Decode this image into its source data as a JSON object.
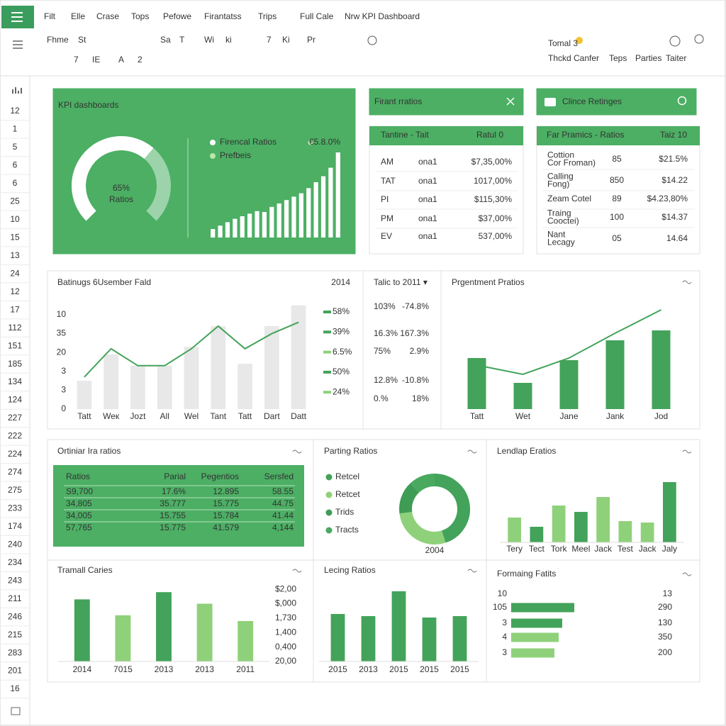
{
  "ui": {
    "menu": [
      "Filt",
      "Elle",
      "Crase",
      "Tops",
      "Pefowe",
      "Firantatss",
      "Trips",
      "Full Cale",
      "Nrw KPI Dashboard"
    ],
    "toolbar_row1": [
      "Fhme",
      "St",
      "Sa",
      "T",
      "Wi",
      "ki",
      "7",
      "Ki",
      "Pr"
    ],
    "toolbar_row2": [
      "7",
      "IE",
      "A",
      "2"
    ],
    "toolbar_right_top": "Tomal 3",
    "toolbar_right_bottom": [
      "Thckd Canfer",
      "Teps",
      "Parties",
      "Taiter"
    ],
    "row_numbers": [
      "12",
      "1",
      "5",
      "6",
      "6",
      "25",
      "10",
      "15",
      "13",
      "24",
      "12",
      "17",
      "112",
      "151",
      "185",
      "134",
      "124",
      "227",
      "222",
      "224",
      "274",
      "275",
      "233",
      "174",
      "240",
      "234",
      "243",
      "211",
      "246",
      "215",
      "283",
      "201",
      "16"
    ]
  },
  "tables": {
    "firant": {
      "title": "Firant rratios",
      "header": [
        "Tantine - Tait",
        "Ratul 0"
      ],
      "rows": [
        [
          "AM",
          "ona1",
          "$7,35,00%"
        ],
        [
          "TAT",
          "ona1",
          "1017,00%"
        ],
        [
          "PI",
          "ona1",
          "$115,30%"
        ],
        [
          "PM",
          "ona1",
          "$37,00%"
        ],
        [
          "EV",
          "ona1",
          "537,00%"
        ]
      ]
    },
    "clince": {
      "title": "Clince Retinges",
      "header": [
        "Far Pramics - Ratios",
        "Taiz 10"
      ],
      "rows": [
        {
          "label": [
            "Cottion",
            "Cor Froman)"
          ],
          "value": "85",
          "ratio": "$21.5%"
        },
        {
          "label": [
            "Calling",
            "Fong)"
          ],
          "value": "850",
          "ratio": "$14.22"
        },
        {
          "label": [
            "Zeam Cotel"
          ],
          "value": "89",
          "ratio": "$4.23,80%"
        },
        {
          "label": [
            "Traing",
            "Cooctei)"
          ],
          "value": "100",
          "ratio": "$14.37"
        },
        {
          "label": [
            "Nant",
            "Lecagy"
          ],
          "value": "05",
          "ratio": "14.64"
        }
      ]
    },
    "talic": {
      "title": "Talic to 2011 ▾",
      "rows": [
        [
          "103%",
          "-74.8%"
        ],
        [
          "16.3%",
          "167.3%"
        ],
        [
          "75%",
          "2.9%"
        ],
        [
          "12.8%",
          "-10.8%"
        ],
        [
          "0.%",
          "18%"
        ]
      ]
    },
    "ortiniar": {
      "title": "Ortiniar Ira ratios",
      "header": [
        "Ratios",
        "Parial",
        "Pegentios",
        "Sersfed"
      ],
      "rows": [
        [
          "S9,700",
          "17.6%",
          "12.895",
          "58.55"
        ],
        [
          "34,805",
          "35.777",
          "15.775",
          "44.75"
        ],
        [
          "34,005",
          "15.755",
          "15.784",
          "41.44"
        ],
        [
          "57,765",
          "15.775",
          "41.579",
          "4,144"
        ]
      ]
    }
  },
  "chart_data": [
    {
      "type": "gauge",
      "title": "KPI dashboards",
      "values": [
        65
      ],
      "value_labels": [
        "65%"
      ],
      "label": "Ratios",
      "ylim": [
        0,
        100
      ],
      "color": "#ffffff"
    },
    {
      "type": "bar",
      "values": [
        10,
        14,
        18,
        22,
        25,
        28,
        31,
        30,
        36,
        40,
        44,
        48,
        52,
        58,
        65,
        72,
        82,
        100
      ],
      "ylim": [
        0,
        100
      ],
      "color": "#ffffff",
      "legend": [
        {
          "name": "Firencal Ratios",
          "color": "#ffffff"
        },
        {
          "name": "Prefbeis",
          "color": "#b9e8a9"
        }
      ],
      "annotation": "€5.8.0%",
      "annotation_color": "#b9e8a9"
    },
    {
      "type": "combo",
      "title": "Batinugs 6Usember Fald",
      "subtitle": "2014",
      "categories": [
        "Tatt",
        "Weк",
        "Jozt",
        "All",
        "Wel",
        "Tant",
        "Tatt",
        "Dart",
        "Datt"
      ],
      "series": [
        {
          "type": "bar",
          "color": "#e8e8e8",
          "values": [
            1.5,
            2.9,
            2.3,
            2.3,
            3.3,
            4.4,
            2.4,
            4.4,
            5.5
          ]
        },
        {
          "type": "line",
          "color": "#43a35a",
          "values": [
            1.7,
            3.2,
            2.3,
            2.3,
            3.2,
            4.4,
            3.2,
            4.0,
            4.6
          ]
        }
      ],
      "ylim": [
        0,
        5.6
      ],
      "yticks": [
        0,
        {
          "value": 1,
          "label": "3"
        },
        {
          "value": 2,
          "label": "3"
        },
        {
          "value": 3,
          "label": "20"
        },
        {
          "value": 4,
          "label": "35"
        },
        {
          "value": 5,
          "label": "10"
        }
      ],
      "legend_values": [
        "58%",
        "39%",
        "6.5%",
        "50%",
        "24%"
      ],
      "legend_colors": [
        "#43a35a",
        "#43a35a",
        "#8fd17a",
        "#43a35a",
        "#8fd17a"
      ]
    },
    {
      "type": "combo",
      "title": "Prgentment Pratios",
      "categories": [
        "Tatt",
        "Wet",
        "Jane",
        "Jank",
        "Jod"
      ],
      "series": [
        {
          "type": "bar",
          "color": "#43a35a",
          "values": [
            72,
            37,
            69,
            97,
            111
          ]
        },
        {
          "type": "line",
          "color": "#43a35a",
          "values": [
            62,
            49,
            72,
            107,
            140
          ]
        }
      ],
      "ylim": [
        0,
        150
      ]
    },
    {
      "type": "pie",
      "donut": true,
      "title": "Parting Ratios",
      "label": "2004",
      "series": [
        {
          "name": "Retcel",
          "color": "#43a35a",
          "values": [
            45
          ]
        },
        {
          "name": "Retcet",
          "color": "#8fd17a",
          "values": [
            28
          ]
        },
        {
          "name": "Trids",
          "color": "#3f9c55",
          "values": [
            15
          ]
        },
        {
          "name": "Tracts",
          "color": "#48a95f",
          "values": [
            12
          ]
        }
      ]
    },
    {
      "type": "bar",
      "title": "Lendlap Eratios",
      "categories": [
        "Tery",
        "Tect",
        "Tork",
        "Meel",
        "Jack",
        "Test",
        "Jack",
        "Jaly"
      ],
      "values": [
        35,
        22,
        52,
        43,
        64,
        30,
        28,
        85
      ],
      "colors": [
        "#8fd17a",
        "#43a35a",
        "#8fd17a",
        "#43a35a",
        "#8fd17a",
        "#8fd17a",
        "#8fd17a",
        "#43a35a"
      ],
      "ylim": [
        0,
        100
      ]
    },
    {
      "type": "bar",
      "title": "Tramall Caries",
      "categories": [
        "2014",
        "7015",
        "2013",
        "2013",
        "2011"
      ],
      "values": [
        4.3,
        3.2,
        4.8,
        4.0,
        2.8
      ],
      "colors": [
        "#43a35a",
        "#8fd17a",
        "#43a35a",
        "#8fd17a",
        "#8fd17a"
      ],
      "ylim": [
        0,
        5.4
      ],
      "y_axis": "right",
      "yticks": [
        {
          "value": 0,
          "label": "20,00"
        },
        {
          "value": 1,
          "label": "0,400"
        },
        {
          "value": 2,
          "label": "1,400"
        },
        {
          "value": 3,
          "label": "1,730"
        },
        {
          "value": 4,
          "label": "$,000"
        },
        {
          "value": 5,
          "label": "$2,00"
        }
      ]
    },
    {
      "type": "bar",
      "title": "Lecing Ratios",
      "categories": [
        "2015",
        "2013",
        "2015",
        "2015",
        "2015"
      ],
      "values": [
        67,
        64,
        99,
        62,
        64
      ],
      "color": "#43a35a",
      "ylim": [
        0,
        110
      ]
    },
    {
      "type": "hbar",
      "title": "Formaing Fatits",
      "header_left": "10",
      "header_right": "13",
      "categories": [
        "105",
        "3",
        "4",
        "3"
      ],
      "right_labels": [
        "290",
        "130",
        "350",
        "200"
      ],
      "values": [
        89,
        72,
        67,
        61
      ],
      "colors": [
        "#43a35a",
        "#43a35a",
        "#8fd17a",
        "#8fd17a"
      ],
      "xlim": [
        0,
        100
      ]
    }
  ]
}
